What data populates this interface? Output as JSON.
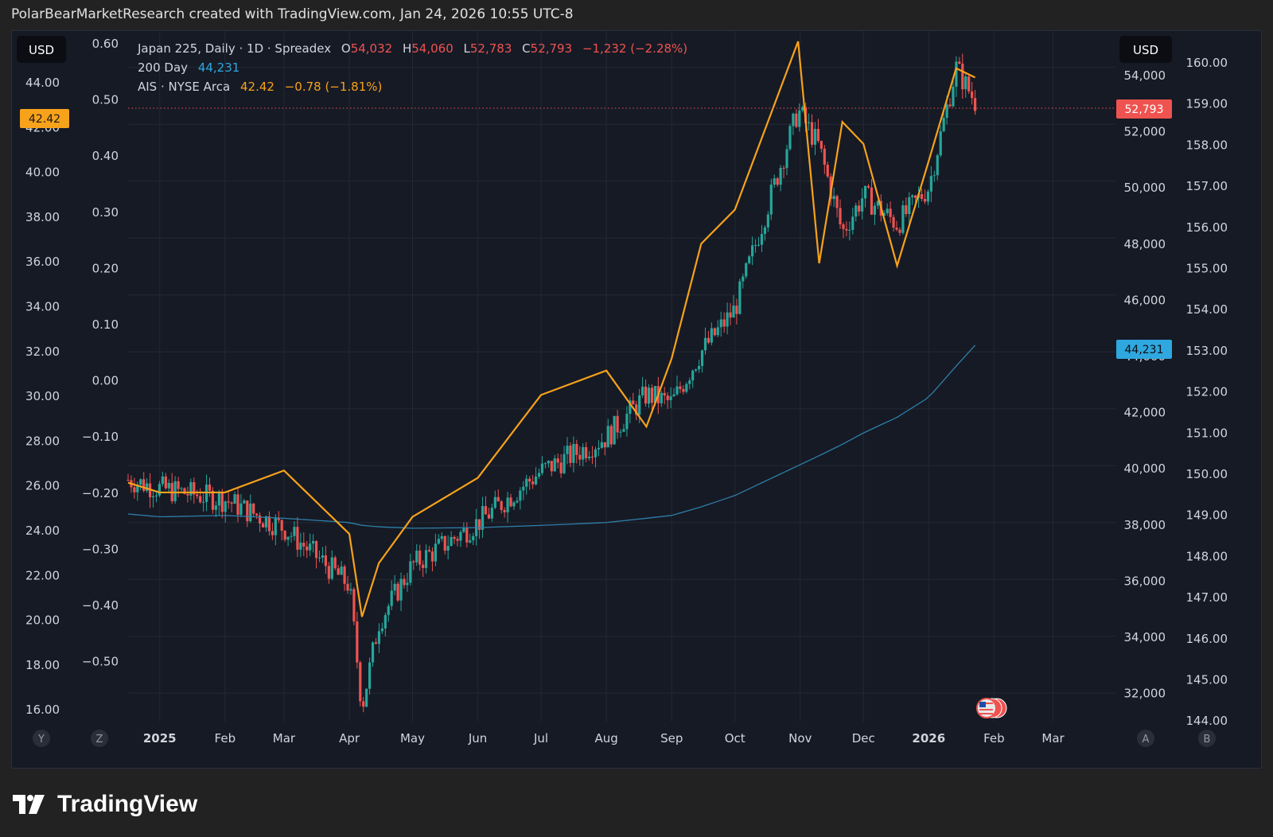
{
  "header": {
    "text": "PolarBearMarketResearch created with TradingView.com, Jan 24, 2026 10:55 UTC-8"
  },
  "legend": {
    "line1": {
      "symbol": "Japan 225, Daily · 1D · Spreadex",
      "o_label": "O",
      "o": "54,032",
      "h_label": "H",
      "h": "54,060",
      "l_label": "L",
      "l": "52,783",
      "c_label": "C",
      "c": "52,793",
      "change": "−1,232 (−2.28%)"
    },
    "line2": {
      "label": "200 Day",
      "value": "44,231"
    },
    "line3": {
      "label": "AIS · NYSE Arca",
      "value": "42.42",
      "change": "−0.78 (−1.81%)"
    }
  },
  "currency_left": "USD",
  "currency_right": "USD",
  "price_badges": {
    "ais": "42.42",
    "nikkei": "52,793",
    "ma200": "44,231"
  },
  "axis_left_outer": [
    "44.00",
    "42.00",
    "40.00",
    "38.00",
    "36.00",
    "34.00",
    "32.00",
    "30.00",
    "28.00",
    "26.00",
    "24.00",
    "22.00",
    "20.00",
    "18.00",
    "16.00"
  ],
  "axis_left_inner": [
    "0.60",
    "0.50",
    "0.40",
    "0.30",
    "0.20",
    "0.10",
    "0.00",
    "−0.10",
    "−0.20",
    "−0.30",
    "−0.40",
    "−0.50"
  ],
  "axis_right_inner": [
    "54,000",
    "52,000",
    "50,000",
    "48,000",
    "46,000",
    "44,000",
    "42,000",
    "40,000",
    "38,000",
    "36,000",
    "34,000",
    "32,000"
  ],
  "axis_right_outer": [
    "160.00",
    "159.00",
    "158.00",
    "157.00",
    "156.00",
    "155.00",
    "154.00",
    "153.00",
    "152.00",
    "151.00",
    "150.00",
    "149.00",
    "148.00",
    "147.00",
    "146.00",
    "145.00",
    "144.00"
  ],
  "x_labels": [
    "2025",
    "Feb",
    "Mar",
    "Apr",
    "May",
    "Jun",
    "Jul",
    "Aug",
    "Sep",
    "Oct",
    "Nov",
    "Dec",
    "2026",
    "Feb",
    "Mar"
  ],
  "corner_buttons": {
    "y": "Y",
    "z": "Z",
    "a": "A",
    "b": "B"
  },
  "footer": {
    "brand": "TradingView"
  },
  "colors": {
    "bg": "#161a25",
    "up": "#26a69a",
    "down": "#ef5350",
    "ais": "#f7a21b",
    "ma": "#2e7ea8",
    "ma_badge": "#2fa7df",
    "grid": "#242833"
  },
  "chart_data": {
    "type": "line",
    "x": [
      "2024-12-17",
      "2025-01-01",
      "2025-02-01",
      "2025-03-01",
      "2025-04-01",
      "2025-04-07",
      "2025-04-15",
      "2025-05-01",
      "2025-06-01",
      "2025-07-01",
      "2025-08-01",
      "2025-08-20",
      "2025-09-01",
      "2025-09-15",
      "2025-10-01",
      "2025-10-31",
      "2025-11-10",
      "2025-11-21",
      "2025-12-01",
      "2025-12-17",
      "2026-01-01",
      "2026-01-14",
      "2026-01-23"
    ],
    "series": [
      {
        "name": "Japan 225",
        "axis": "right",
        "values": [
          39500,
          39200,
          38800,
          37800,
          35800,
          31500,
          34500,
          36500,
          38000,
          39800,
          41000,
          42500,
          42200,
          44000,
          45500,
          52500,
          51200,
          48200,
          49500,
          48500,
          49800,
          54000,
          52793
        ]
      },
      {
        "name": "200 Day",
        "axis": "right",
        "values": [
          38300,
          38200,
          38250,
          38150,
          38000,
          37900,
          37850,
          37800,
          37820,
          37900,
          38000,
          38150,
          38250,
          38550,
          38950,
          40000,
          40350,
          40750,
          41150,
          41700,
          42400,
          43500,
          44231
        ]
      },
      {
        "name": "AIS",
        "axis": "left",
        "values": [
          25.8,
          25.4,
          25.4,
          26.3,
          23.7,
          20.3,
          22.5,
          24.4,
          26.0,
          29.4,
          30.4,
          28.1,
          30.9,
          35.6,
          37.0,
          43.9,
          34.8,
          40.6,
          39.7,
          34.7,
          39.0,
          42.8,
          42.42
        ]
      }
    ],
    "axes": {
      "right": {
        "range": [
          31000,
          55000
        ],
        "ticks": [
          32000,
          34000,
          36000,
          38000,
          40000,
          42000,
          44000,
          46000,
          48000,
          50000,
          52000,
          54000
        ]
      },
      "left": {
        "range": [
          16.0,
          44.0
        ],
        "ticks": [
          16,
          18,
          20,
          22,
          24,
          26,
          28,
          30,
          32,
          34,
          36,
          38,
          40,
          42,
          44
        ]
      }
    },
    "grid": true
  }
}
